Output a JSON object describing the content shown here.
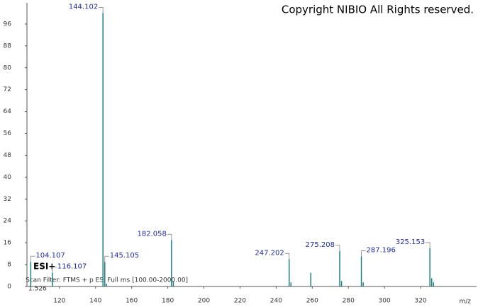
{
  "chart_data": {
    "type": "stem",
    "copyright": "Copyright NIBIO All Rights reserved.",
    "ionization": "ESI+",
    "scan_filter": "Scan Filter: FTMS + p ESI Full ms [100.00-2000.00]",
    "intensity": "1.526",
    "xlabel": "m/z",
    "series": [
      {
        "color": "#1f7f7f",
        "show_labels": true,
        "x": [
          104.107,
          116.107,
          144.102,
          145.105,
          182.058,
          247.202,
          275.208,
          287.196,
          325.153
        ],
        "values": [
          9,
          5,
          100,
          9,
          17,
          10,
          13,
          11,
          14
        ]
      },
      {
        "color": "#1f7f7f",
        "show_labels": false,
        "x": [
          183.06,
          248.2,
          259.2,
          276.2,
          288.2,
          326.15,
          327.15,
          146.1
        ],
        "values": [
          2,
          1.5,
          5,
          2,
          1.5,
          3,
          1.5,
          1
        ]
      }
    ],
    "xlim": [
      102,
      351
    ],
    "xticks": [
      120,
      140,
      160,
      180,
      200,
      220,
      240,
      260,
      280,
      300,
      320
    ],
    "ylim": [
      0,
      104
    ],
    "yticks": [
      0,
      8,
      16,
      24,
      32,
      40,
      48,
      56,
      64,
      72,
      80,
      88,
      96
    ]
  }
}
